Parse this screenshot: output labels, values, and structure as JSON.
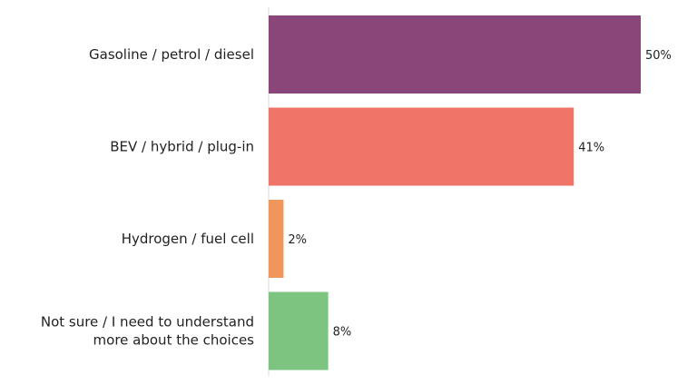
{
  "chart_data": {
    "type": "bar",
    "orientation": "horizontal",
    "categories": [
      "Gasoline / petrol / diesel",
      "BEV / hybrid / plug-in",
      "Hydrogen / fuel cell",
      "Not sure / I need to understand more about the choices"
    ],
    "category_lines": [
      [
        "Gasoline / petrol / diesel"
      ],
      [
        "BEV / hybrid / plug-in"
      ],
      [
        "Hydrogen / fuel cell"
      ],
      [
        "Not sure / I need to understand",
        "more about the choices"
      ]
    ],
    "values": [
      50,
      41,
      2,
      8
    ],
    "value_labels": [
      "50%",
      "41%",
      "2%",
      "8%"
    ],
    "colors": [
      "#8b4679",
      "#f07468",
      "#f0965c",
      "#7cc47f"
    ],
    "unit": "%",
    "xlim": [
      0,
      50
    ],
    "grid": false,
    "legend": "none"
  }
}
